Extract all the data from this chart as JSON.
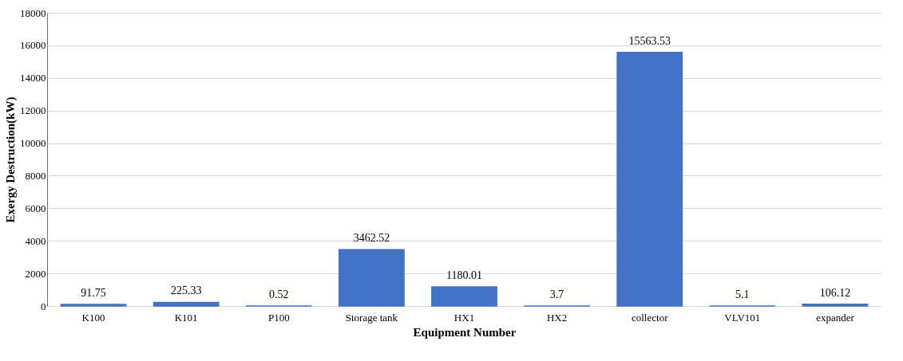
{
  "chart_data": {
    "type": "bar",
    "xlabel": "Equipment Number",
    "ylabel": "Exergy Destruction(kW)",
    "categories": [
      "K100",
      "K101",
      "P100",
      "Storage tank",
      "HX1",
      "HX2",
      "collector",
      "VLV101",
      "expander"
    ],
    "values": [
      91.75,
      225.33,
      0.52,
      3462.52,
      1180.01,
      3.7,
      15563.53,
      5.1,
      106.12
    ],
    "color": "#4472c4",
    "ylim": [
      0,
      18000
    ],
    "yticks": [
      0,
      2000,
      4000,
      6000,
      8000,
      10000,
      12000,
      14000,
      16000,
      18000
    ],
    "grid": "y",
    "data_labels": true
  }
}
